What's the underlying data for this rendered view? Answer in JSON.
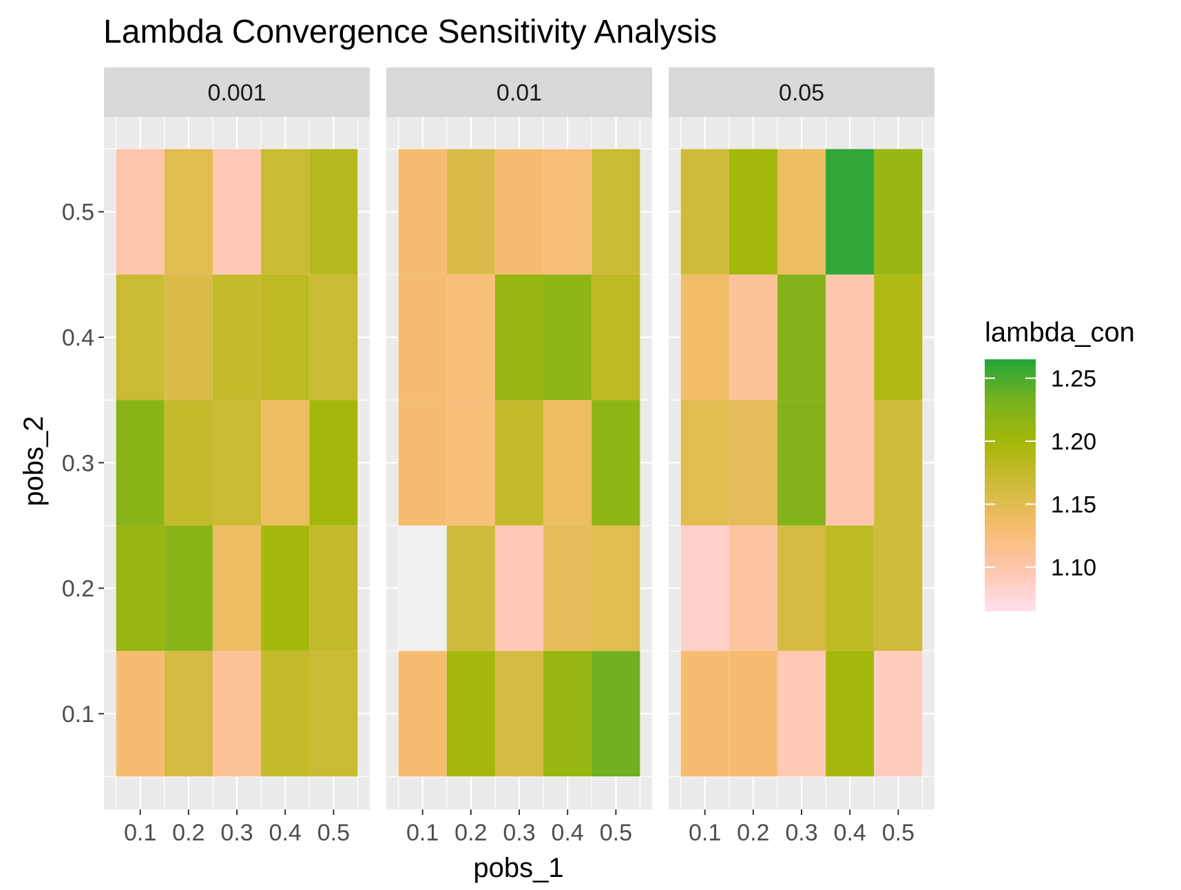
{
  "chart_data": {
    "type": "heatmap",
    "title": "Lambda Convergence Sensitivity Analysis",
    "xlabel": "pobs_1",
    "ylabel": "pobs_2",
    "x": [
      0.1,
      0.2,
      0.3,
      0.4,
      0.5
    ],
    "y": [
      0.1,
      0.2,
      0.3,
      0.4,
      0.5
    ],
    "x_tick_labels": [
      "0.1",
      "0.2",
      "0.3",
      "0.4",
      "0.5"
    ],
    "y_tick_labels": [
      "0.1",
      "0.2",
      "0.3",
      "0.4",
      "0.5"
    ],
    "facets": [
      {
        "label": "0.001",
        "values": [
          [
            1.13,
            1.16,
            1.11,
            1.175,
            1.17
          ],
          [
            1.21,
            1.22,
            1.14,
            1.2,
            1.175
          ],
          [
            1.22,
            1.175,
            1.17,
            1.14,
            1.2
          ],
          [
            1.17,
            1.155,
            1.175,
            1.18,
            1.17
          ],
          [
            1.1,
            1.15,
            1.095,
            1.17,
            1.185
          ]
        ]
      },
      {
        "label": "0.01",
        "values": [
          [
            1.13,
            1.2,
            1.16,
            1.21,
            1.235
          ],
          [
            null,
            1.165,
            1.095,
            1.145,
            1.15
          ],
          [
            1.13,
            1.125,
            1.175,
            1.14,
            1.215
          ],
          [
            1.13,
            1.125,
            1.21,
            1.215,
            1.18
          ],
          [
            1.13,
            1.155,
            1.13,
            1.125,
            1.17
          ]
        ]
      },
      {
        "label": "0.05",
        "values": [
          [
            1.13,
            1.13,
            1.095,
            1.2,
            1.09
          ],
          [
            1.085,
            1.105,
            1.16,
            1.18,
            1.165
          ],
          [
            1.15,
            1.145,
            1.225,
            1.1,
            1.165
          ],
          [
            1.135,
            1.11,
            1.225,
            1.1,
            1.19
          ],
          [
            1.165,
            1.2,
            1.14,
            1.26,
            1.21
          ]
        ]
      }
    ],
    "legend": {
      "title": "lambda_con",
      "position": "right",
      "labels": [
        "1.25",
        "1.20",
        "1.15",
        "1.10"
      ],
      "ticks": [
        1.25,
        1.2,
        1.15,
        1.1
      ],
      "min": 1.065,
      "max": 1.265
    },
    "colors": {
      "panel_background": "#ebebeb",
      "grid": "#ffffff",
      "strip_background": "#d9d9d9",
      "na_fill": "#f0f0f0",
      "gradient": [
        "#ffe0f0",
        "#ffc6ae",
        "#f6bd6e",
        "#cfbb3a",
        "#a6b80a",
        "#79b21e",
        "#23a53a"
      ]
    },
    "grid": true
  }
}
